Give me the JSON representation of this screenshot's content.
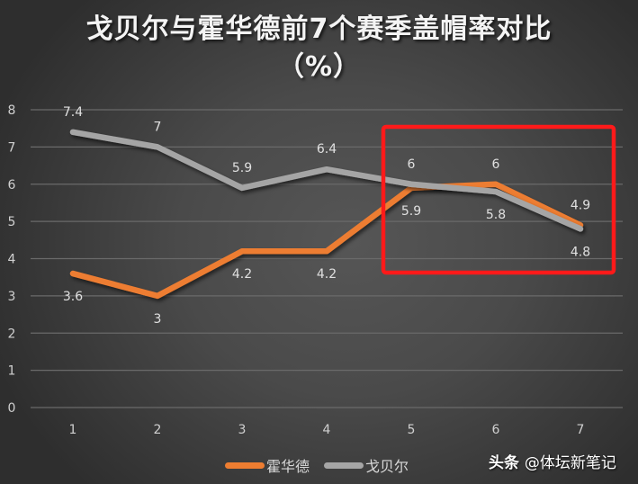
{
  "title_line1": "戈贝尔与霍华德前7个赛季盖帽率对比",
  "title_line2": "（%）",
  "watermark": {
    "brand": "头条",
    "handle": "@体坛新笔记"
  },
  "legend": [
    {
      "name": "霍华德",
      "color": "#ed7d31"
    },
    {
      "name": "戈贝尔",
      "color": "#a5a5a5"
    }
  ],
  "highlight_box": {
    "color": "#ff1a1a",
    "covers_seasons": [
      5,
      6,
      7
    ]
  },
  "chart_data": {
    "type": "line",
    "title": "戈贝尔与霍华德前7个赛季盖帽率对比（%）",
    "xlabel": "",
    "ylabel": "",
    "categories": [
      "1",
      "2",
      "3",
      "4",
      "5",
      "6",
      "7"
    ],
    "ylim": [
      0,
      8
    ],
    "yticks": [
      0,
      1,
      2,
      3,
      4,
      5,
      6,
      7,
      8
    ],
    "grid": true,
    "legend_position": "bottom",
    "series": [
      {
        "name": "霍华德",
        "color": "#ed7d31",
        "values": [
          3.6,
          3,
          4.2,
          4.2,
          5.9,
          6,
          4.9
        ]
      },
      {
        "name": "戈贝尔",
        "color": "#a5a5a5",
        "values": [
          7.4,
          7,
          5.9,
          6.4,
          6,
          5.8,
          4.8
        ]
      }
    ]
  }
}
